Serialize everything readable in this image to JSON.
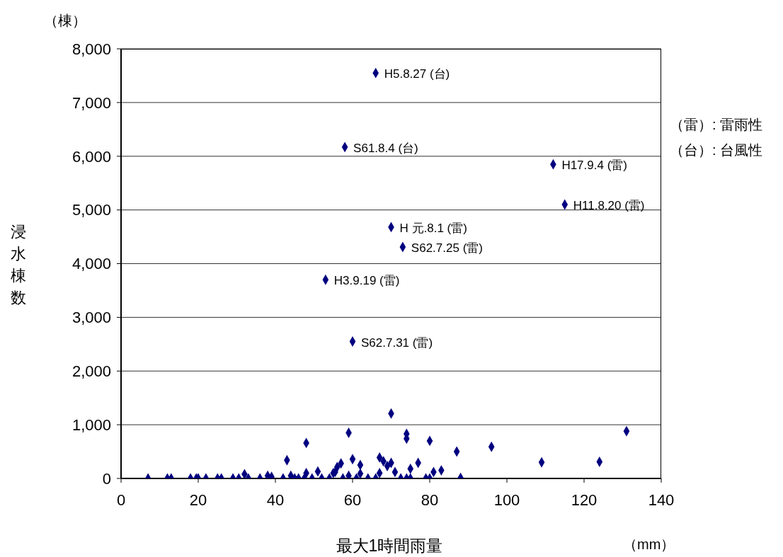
{
  "chart_data": {
    "type": "scatter",
    "xlabel": "最大1時間雨量",
    "ylabel": "浸水棟数",
    "xlim": [
      0,
      140
    ],
    "xticks": [
      0,
      20,
      40,
      60,
      80,
      100,
      120,
      140
    ],
    "ylim": [
      0,
      8000
    ],
    "yticks": [
      {
        "value": 0,
        "label": "0"
      },
      {
        "value": 1000,
        "label": "1,000"
      },
      {
        "value": 2000,
        "label": "2,000"
      },
      {
        "value": 3000,
        "label": "3,000"
      },
      {
        "value": 4000,
        "label": "4,000"
      },
      {
        "value": 5000,
        "label": "5,000"
      },
      {
        "value": 6000,
        "label": "6,000"
      },
      {
        "value": 7000,
        "label": "7,000"
      },
      {
        "value": 8000,
        "label": "8,000"
      }
    ],
    "grid": "y",
    "legend": false,
    "marker": "diamond",
    "series": [
      {
        "color": "#000080",
        "x": [
          66,
          58,
          112,
          115,
          70,
          73,
          53,
          60,
          7,
          12,
          13,
          18,
          19.5,
          20,
          22,
          25,
          26,
          29,
          30.5,
          32,
          33,
          36,
          38,
          39,
          42,
          43,
          44,
          45,
          47.5,
          48,
          48,
          46,
          49.5,
          51,
          52,
          54,
          55,
          55.5,
          56,
          57,
          57.5,
          59,
          59,
          60,
          61,
          62,
          62,
          64,
          66,
          67,
          67,
          68,
          69,
          70,
          70,
          71,
          72.5,
          74,
          74,
          74,
          75,
          75,
          77,
          79,
          80,
          80,
          81,
          83,
          87,
          88,
          96,
          109,
          124,
          131
        ],
        "values": [
          7550,
          6170,
          5850,
          5100,
          4680,
          4310,
          3700,
          2550,
          0,
          0,
          0,
          0,
          0,
          0,
          0,
          0,
          0,
          0,
          0,
          80,
          0,
          0,
          50,
          30,
          0,
          340,
          50,
          0,
          0,
          100,
          660,
          0,
          0,
          130,
          0,
          0,
          100,
          120,
          210,
          280,
          0,
          50,
          850,
          360,
          0,
          250,
          90,
          0,
          0,
          390,
          100,
          320,
          230,
          1210,
          290,
          120,
          0,
          830,
          740,
          0,
          180,
          0,
          290,
          0,
          700,
          0,
          120,
          150,
          500,
          10,
          590,
          300,
          310,
          880
        ]
      }
    ],
    "annotations": [
      "（棟）",
      "（mm）",
      "（雷）: 雷雨性",
      "（台）: 台風性",
      {
        "text": "H5.8.27 (台)",
        "x": 66,
        "y": 7550
      },
      {
        "text": "S61.8.4 (台)",
        "x": 58,
        "y": 6170
      },
      {
        "text": "H17.9.4 (雷)",
        "x": 112,
        "y": 5850
      },
      {
        "text": "H11.8.20 (雷)",
        "x": 115,
        "y": 5100
      },
      {
        "text": "H 元.8.1 (雷)",
        "x": 70,
        "y": 4680
      },
      {
        "text": "S62.7.25 (雷)",
        "x": 73,
        "y": 4310
      },
      {
        "text": "H3.9.19 (雷)",
        "x": 53,
        "y": 3700
      },
      {
        "text": "S62.7.31 (雷)",
        "x": 60,
        "y": 2550
      }
    ]
  }
}
